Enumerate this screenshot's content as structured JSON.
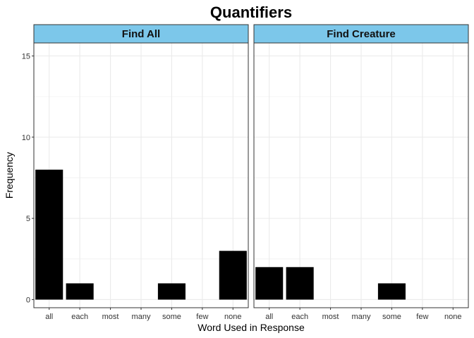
{
  "chart_data": {
    "type": "bar",
    "title": "Quantifiers",
    "xlabel": "Word Used in Response",
    "ylabel": "Frequency",
    "categories": [
      "all",
      "each",
      "most",
      "many",
      "some",
      "few",
      "none"
    ],
    "ylim": [
      -0.5,
      15.8
    ],
    "yticks": [
      0,
      5,
      10,
      15
    ],
    "grid": true,
    "colors": {
      "bar": "#000000",
      "strip_fill": "#7cc7ea",
      "grid": "#ebebeb",
      "panel_border": "#333333"
    },
    "panels": [
      {
        "name": "Find All",
        "values": [
          8,
          1,
          0,
          0,
          1,
          0,
          3
        ]
      },
      {
        "name": "Find Creature",
        "values": [
          2,
          2,
          0,
          0,
          1,
          0,
          0
        ]
      }
    ]
  }
}
